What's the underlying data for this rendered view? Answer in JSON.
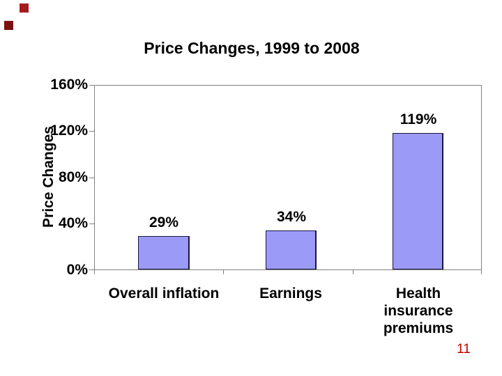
{
  "page": {
    "number": "11",
    "number_color": "#C00000"
  },
  "decorations": {
    "square_top_color": "#A61B1B",
    "square_left_color": "#7C1010"
  },
  "chart_data": {
    "type": "bar",
    "title": "Price Changes, 1999 to 2008",
    "xlabel": "",
    "ylabel": "Price Changes",
    "categories": [
      "Overall inflation",
      "Earnings",
      "Health insurance premiums"
    ],
    "values": [
      29,
      34,
      119
    ],
    "data_labels": [
      "29%",
      "34%",
      "119%"
    ],
    "y_ticks": [
      "0%",
      "40%",
      "80%",
      "120%",
      "160%"
    ],
    "ylim": [
      0,
      160
    ],
    "grid": false,
    "legend": "none",
    "bar_color": "#9B9AF6",
    "bar_border_color": "#17173F",
    "axis_color": "#808080",
    "text_color": "#000000"
  }
}
